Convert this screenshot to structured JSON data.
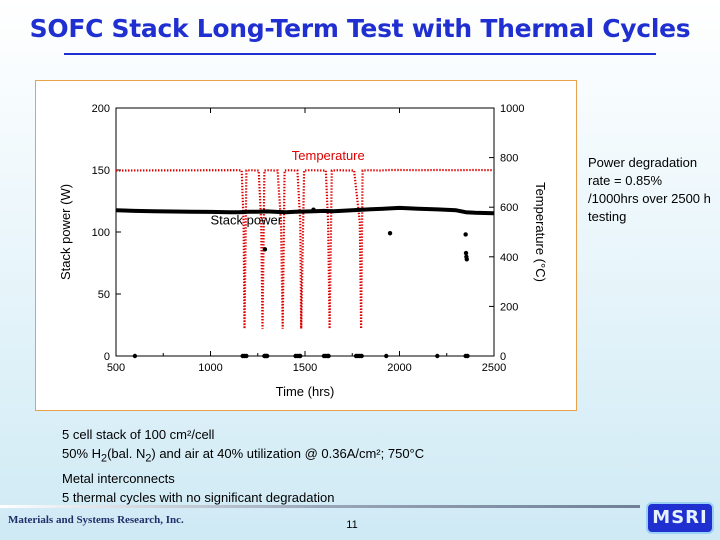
{
  "slide": {
    "title": "SOFC Stack Long-Term Test with Thermal Cycles",
    "side_note": "Power degradation rate = 0.85% /1000hrs over 2500 h testing",
    "bullets": [
      {
        "parts": [
          "5 cell stack of 100 cm²/cell"
        ]
      },
      {
        "parts": [
          "50% H",
          "2",
          "(bal. N",
          "2",
          ") and air at 40% utilization @ 0.36A/cm²; 750°C"
        ]
      },
      {
        "parts": [
          "Metal interconnects"
        ]
      },
      {
        "parts": [
          "5 thermal cycles with no significant degradation"
        ]
      }
    ],
    "footer_company": "Materials and Systems Research, Inc.",
    "page_number": "11",
    "logo_text": "MSRI"
  },
  "chart_data": {
    "type": "line",
    "xlabel": "Time (hrs)",
    "ylabel_left": "Stack power (W)",
    "ylabel_right": "Temperature (°C)",
    "xlim": [
      500,
      2500
    ],
    "ylim_left": [
      0,
      200
    ],
    "ylim_right": [
      0,
      1000
    ],
    "xticks": [
      500,
      1000,
      1500,
      2000,
      2500
    ],
    "yticks_left": [
      0,
      50,
      100,
      150,
      200
    ],
    "yticks_right": [
      0,
      200,
      400,
      600,
      800,
      1000
    ],
    "grid": false,
    "colors": {
      "temperature": "#e00000",
      "power": "#000000"
    },
    "series": [
      {
        "name": "Temperature",
        "axis": "right",
        "x": [
          500,
          1150,
          1165,
          1175,
          1180,
          1190,
          1215,
          1240,
          1255,
          1268,
          1275,
          1285,
          1310,
          1335,
          1355,
          1373,
          1382,
          1392,
          1420,
          1445,
          1460,
          1475,
          1480,
          1495,
          1530,
          1590,
          1610,
          1622,
          1630,
          1642,
          1680,
          1720,
          1760,
          1790,
          1797,
          1805,
          1840,
          1900,
          1950,
          2000,
          2100,
          2200,
          2300,
          2400,
          2500
        ],
        "y": [
          748,
          749,
          748,
          540,
          110,
          748,
          749,
          748,
          748,
          540,
          110,
          748,
          749,
          748,
          748,
          540,
          110,
          748,
          749,
          748,
          748,
          540,
          110,
          748,
          749,
          748,
          748,
          540,
          110,
          748,
          749,
          748,
          748,
          540,
          110,
          748,
          749,
          748,
          750,
          750,
          749,
          750,
          749,
          750,
          749
        ]
      },
      {
        "name": "Stack power",
        "axis": "left",
        "x": [
          500,
          600,
          700,
          800,
          900,
          1000,
          1100,
          1150,
          1200,
          1250,
          1300,
          1350,
          1400,
          1450,
          1500,
          1550,
          1600,
          1650,
          1700,
          1750,
          1800,
          1850,
          1900,
          1950,
          2000,
          2100,
          2200,
          2300,
          2350,
          2400,
          2500
        ],
        "y": [
          117.5,
          117,
          116.8,
          116.5,
          116.4,
          116.2,
          116,
          116,
          116.3,
          116.4,
          116.6,
          116.2,
          116,
          116.3,
          116.5,
          116.8,
          117,
          116.7,
          117.2,
          117.6,
          118,
          118.4,
          118.6,
          119,
          119.4,
          118.8,
          118.2,
          117.5,
          116,
          115.6,
          115.2
        ],
        "outliers_x": [
          1288,
          1545,
          1950,
          2350,
          2352,
          2354,
          2356
        ],
        "outliers_y": [
          86,
          118,
          99,
          98,
          83,
          80,
          78
        ],
        "shutdown_x": [
          600,
          1170,
          1180,
          1190,
          1285,
          1290,
          1295,
          1300,
          1450,
          1460,
          1470,
          1475,
          1600,
          1610,
          1620,
          1625,
          1770,
          1780,
          1790,
          1800,
          1930,
          2200,
          2350,
          2360
        ],
        "shutdown_y": 0
      }
    ],
    "annotations": [
      {
        "text": "Temperature",
        "x": 1430,
        "y_right": 790,
        "color": "#e00000"
      },
      {
        "text": "Stack power",
        "x": 1000,
        "y_right": 530,
        "color": "#000000"
      }
    ]
  }
}
